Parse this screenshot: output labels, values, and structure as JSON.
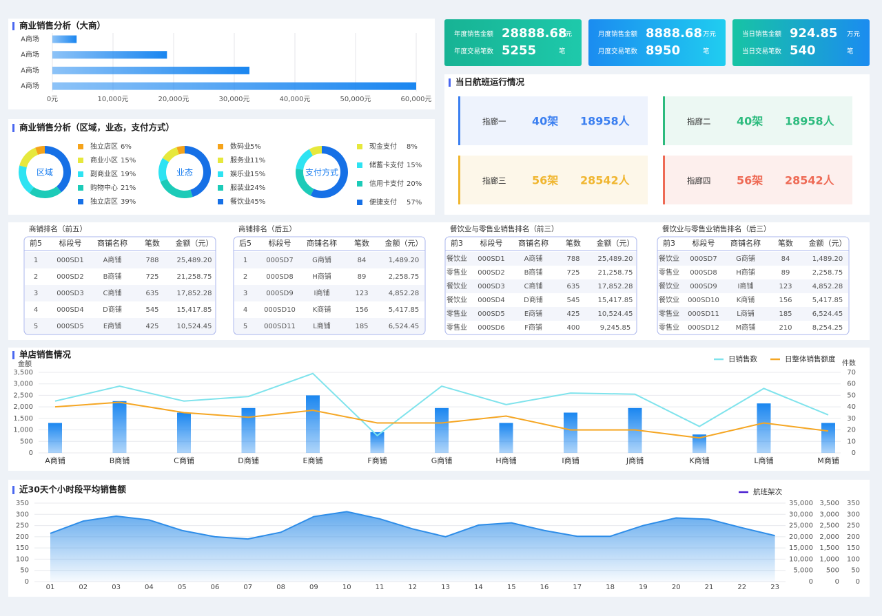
{
  "chart_data": [
    {
      "type": "hbar",
      "title": "商业销售分析（大商）",
      "categories": [
        "A商场",
        "A商场",
        "A商场",
        "A商场"
      ],
      "values": [
        4000,
        18900,
        32500,
        60000
      ],
      "color": "#1a86f0",
      "xlim": [
        0,
        60000
      ],
      "xticks": [
        {
          "value": 0,
          "label": "0元"
        },
        {
          "value": 10000,
          "label": "10,000元"
        },
        {
          "value": 20000,
          "label": "20,000元"
        },
        {
          "value": 30000,
          "label": "30,000元"
        },
        {
          "value": 40000,
          "label": "40,000元"
        },
        {
          "value": 50000,
          "label": "50,000元"
        },
        {
          "value": 60000,
          "label": "60,000元"
        }
      ],
      "grid": true
    },
    {
      "type": "donut-group",
      "title": "商业销售分析（区域，业态，支付方式）",
      "charts": [
        {
          "label": "区域",
          "categories": [
            "独立店区",
            "商业小区",
            "副商业区",
            "购物中心",
            "独立店区"
          ],
          "values": [
            6,
            15,
            19,
            21,
            39
          ],
          "value_labels": [
            "6%",
            "15%",
            "19%",
            "21%",
            "39%"
          ],
          "colors": [
            "#f5a31a",
            "#e6e83c",
            "#2ee3f2",
            "#1ccbb8",
            "#1670e6"
          ]
        },
        {
          "label": "业态",
          "categories": [
            "数码业",
            "服务业",
            "娱乐业",
            "服装业",
            "餐饮业"
          ],
          "values": [
            5,
            11,
            15,
            24,
            45
          ],
          "value_labels": [
            "5%",
            "11%",
            "15%",
            "24%",
            "45%"
          ],
          "colors": [
            "#f5a31a",
            "#e6e83c",
            "#2ee3f2",
            "#1ccbb8",
            "#1670e6"
          ]
        },
        {
          "label": "支付方式",
          "categories": [
            "现金支付",
            "储蓄卡支付",
            "信用卡支付",
            "便捷支付"
          ],
          "values": [
            8,
            15,
            20,
            57
          ],
          "value_labels": [
            "8%",
            "15%",
            "20%",
            "57%"
          ],
          "colors": [
            "#e6e83c",
            "#2ee3f2",
            "#1ccbb8",
            "#1670e6"
          ]
        }
      ]
    },
    {
      "type": "combo",
      "title": "单店销售情况",
      "ylabel": "金额",
      "y2label": "件数",
      "categories": [
        "A商铺",
        "B商铺",
        "C商铺",
        "D商铺",
        "E商铺",
        "F商铺",
        "G商铺",
        "H商铺",
        "I商铺",
        "J商铺",
        "K商铺",
        "L商铺",
        "M商铺"
      ],
      "ylim": [
        0,
        3500
      ],
      "yticks": [
        0,
        500,
        {
          "value": 1000,
          "label": "1,000"
        },
        {
          "value": 1500,
          "label": "1,500"
        },
        {
          "value": 2000,
          "label": "2,000"
        },
        {
          "value": 2500,
          "label": "2,500"
        },
        {
          "value": 3000,
          "label": "3,000"
        },
        {
          "value": 3500,
          "label": "3,500"
        }
      ],
      "y2lim": [
        0,
        70
      ],
      "y2ticks": [
        0,
        10,
        20,
        30,
        40,
        50,
        60,
        70
      ],
      "grid": true,
      "legend": "top-right",
      "series": [
        {
          "type": "bar",
          "color": "#1a86f0",
          "values": [
            1300,
            2250,
            1750,
            1950,
            2500,
            900,
            1950,
            1300,
            1750,
            1950,
            800,
            2150,
            1300
          ]
        },
        {
          "name": "日销售数",
          "type": "line",
          "axis": "y2",
          "color": "#7fe3ec",
          "values": [
            45,
            58,
            45,
            49,
            69,
            15,
            58,
            42,
            52,
            51,
            23,
            56,
            33
          ]
        },
        {
          "name": "日整体销售额度",
          "type": "line",
          "axis": "y2",
          "color": "#f5a623",
          "values": [
            40,
            44,
            35,
            31,
            37,
            26,
            26,
            32,
            20,
            20,
            13,
            26,
            19
          ]
        }
      ]
    },
    {
      "type": "area",
      "title": "近30天个小时段平均销售额",
      "categories": [
        "01",
        "02",
        "03",
        "04",
        "05",
        "06",
        "07",
        "08",
        "09",
        "10",
        "11",
        "12",
        "13",
        "14",
        "15",
        "16",
        "17",
        "18",
        "19",
        "20",
        "21",
        "22",
        "23"
      ],
      "ylim": [
        0,
        350
      ],
      "yticks": [
        0,
        50,
        100,
        150,
        200,
        250,
        300,
        350
      ],
      "y2lim": [
        0,
        35000
      ],
      "y2ticks": [
        0,
        {
          "value": 5000,
          "label": "5,000"
        },
        {
          "value": 10000,
          "label": "10,000"
        },
        {
          "value": 15000,
          "label": "15,000"
        },
        {
          "value": 20000,
          "label": "20,000"
        },
        {
          "value": 25000,
          "label": "25,000"
        },
        {
          "value": 30000,
          "label": "30,000"
        },
        {
          "value": 35000,
          "label": "35,000"
        }
      ],
      "y3lim": [
        0,
        3500
      ],
      "y3ticks": [
        0,
        500,
        {
          "value": 1000,
          "label": "1,000"
        },
        {
          "value": 1500,
          "label": "1,500"
        },
        {
          "value": 2000,
          "label": "2,000"
        },
        {
          "value": 2500,
          "label": "2,500"
        },
        {
          "value": 3000,
          "label": "3,000"
        },
        {
          "value": 3500,
          "label": "3,500"
        }
      ],
      "y4lim": [
        0,
        350
      ],
      "y4ticks": [
        0,
        50,
        100,
        150,
        200,
        250,
        300,
        350
      ],
      "grid": true,
      "legend": "top-right",
      "series": [
        {
          "name": "航班架次",
          "color": "#2e8de8",
          "legend_color": "#4a1fd0",
          "values": [
            215,
            270,
            292,
            275,
            228,
            200,
            190,
            220,
            290,
            312,
            280,
            235,
            200,
            252,
            262,
            228,
            202,
            202,
            250,
            284,
            278,
            240,
            205
          ]
        }
      ]
    }
  ],
  "kpis": [
    {
      "colors": [
        "#17b394",
        "#1ec9ab"
      ],
      "rows": [
        {
          "label": "年度销售金额",
          "value": 28888.68,
          "unit": "万元"
        },
        {
          "label": "年度交易笔数",
          "value": 5255,
          "unit": "笔"
        }
      ]
    },
    {
      "colors": [
        "#1b8cf0",
        "#20cdf0"
      ],
      "rows": [
        {
          "label": "月度销售金额",
          "value": 8888.68,
          "unit": "万元"
        },
        {
          "label": "月度交易笔数",
          "value": 8950,
          "unit": "笔"
        }
      ]
    },
    {
      "colors": [
        "#17c4a4",
        "#1b8cf0"
      ],
      "rows": [
        {
          "label": "当日销售金额",
          "value": 924.85,
          "unit": "万元"
        },
        {
          "label": "当日交易笔数",
          "value": 540,
          "unit": "笔"
        }
      ]
    }
  ],
  "flights": {
    "title": "当日航班运行情况",
    "items": [
      {
        "label": "指廊一",
        "planes": "40架",
        "people": "18958人",
        "color": "#3b7ff0",
        "bg": "#eef3fd"
      },
      {
        "label": "指廊二",
        "planes": "40架",
        "people": "18958人",
        "color": "#2dbb7e",
        "bg": "#ecf8f3"
      },
      {
        "label": "指廊三",
        "planes": "56架",
        "people": "28542人",
        "color": "#f0b630",
        "bg": "#fdf7e9"
      },
      {
        "label": "指廊四",
        "planes": "56架",
        "people": "28542人",
        "color": "#ee6a55",
        "bg": "#fdefed"
      }
    ]
  },
  "tables": [
    {
      "title": "商铺排名（前五）",
      "header": [
        "前5",
        "标段号",
        "商铺名称",
        "笔数",
        "金额（元）"
      ],
      "rows": [
        [
          "1",
          "000SD1",
          "A商铺",
          "788",
          "25,489.20"
        ],
        [
          "2",
          "000SD2",
          "B商铺",
          "725",
          "21,258.75"
        ],
        [
          "3",
          "000SD3",
          "C商铺",
          "635",
          "17,852.28"
        ],
        [
          "4",
          "000SD4",
          "D商铺",
          "545",
          "15,417.85"
        ],
        [
          "5",
          "000SD5",
          "E商铺",
          "425",
          "10,524.45"
        ]
      ]
    },
    {
      "title": "商铺排名（后五）",
      "header": [
        "后5",
        "标段号",
        "商铺名称",
        "笔数",
        "金额（元）"
      ],
      "rows": [
        [
          "1",
          "000SD7",
          "G商铺",
          "84",
          "1,489.20"
        ],
        [
          "2",
          "000SD8",
          "H商铺",
          "89",
          "2,258.75"
        ],
        [
          "3",
          "000SD9",
          "I商铺",
          "123",
          "4,852.28"
        ],
        [
          "4",
          "000SD10",
          "K商铺",
          "156",
          "5,417.85"
        ],
        [
          "5",
          "000SD11",
          "L商铺",
          "185",
          "6,524.45"
        ]
      ]
    },
    {
      "title": "餐饮业与零售业销售排名（前三）",
      "header": [
        "前3",
        "标段号",
        "商铺名称",
        "笔数",
        "金额（元）"
      ],
      "rows": [
        [
          "餐饮业",
          "000SD1",
          "A商铺",
          "788",
          "25,489.20"
        ],
        [
          "零售业",
          "000SD2",
          "B商铺",
          "725",
          "21,258.75"
        ],
        [
          "餐饮业",
          "000SD3",
          "C商铺",
          "635",
          "17,852.28"
        ],
        [
          "餐饮业",
          "000SD4",
          "D商铺",
          "545",
          "15,417.85"
        ],
        [
          "零售业",
          "000SD5",
          "E商铺",
          "425",
          "10,524.45"
        ],
        [
          "零售业",
          "000SD6",
          "F商铺",
          "400",
          "9,245.85"
        ]
      ]
    },
    {
      "title": "餐饮业与零售业销售排名（后三）",
      "header": [
        "前3",
        "标段号",
        "商铺名称",
        "笔数",
        "金额（元）"
      ],
      "rows": [
        [
          "餐饮业",
          "000SD7",
          "G商铺",
          "84",
          "1,489.20"
        ],
        [
          "零售业",
          "000SD8",
          "H商铺",
          "89",
          "2,258.75"
        ],
        [
          "餐饮业",
          "000SD9",
          "I商铺",
          "123",
          "4,852.28"
        ],
        [
          "餐饮业",
          "000SD10",
          "K商铺",
          "156",
          "5,417.85"
        ],
        [
          "零售业",
          "000SD11",
          "L商铺",
          "185",
          "6,524.45"
        ],
        [
          "零售业",
          "000SD12",
          "M商铺",
          "210",
          "8,254.25"
        ]
      ]
    }
  ]
}
